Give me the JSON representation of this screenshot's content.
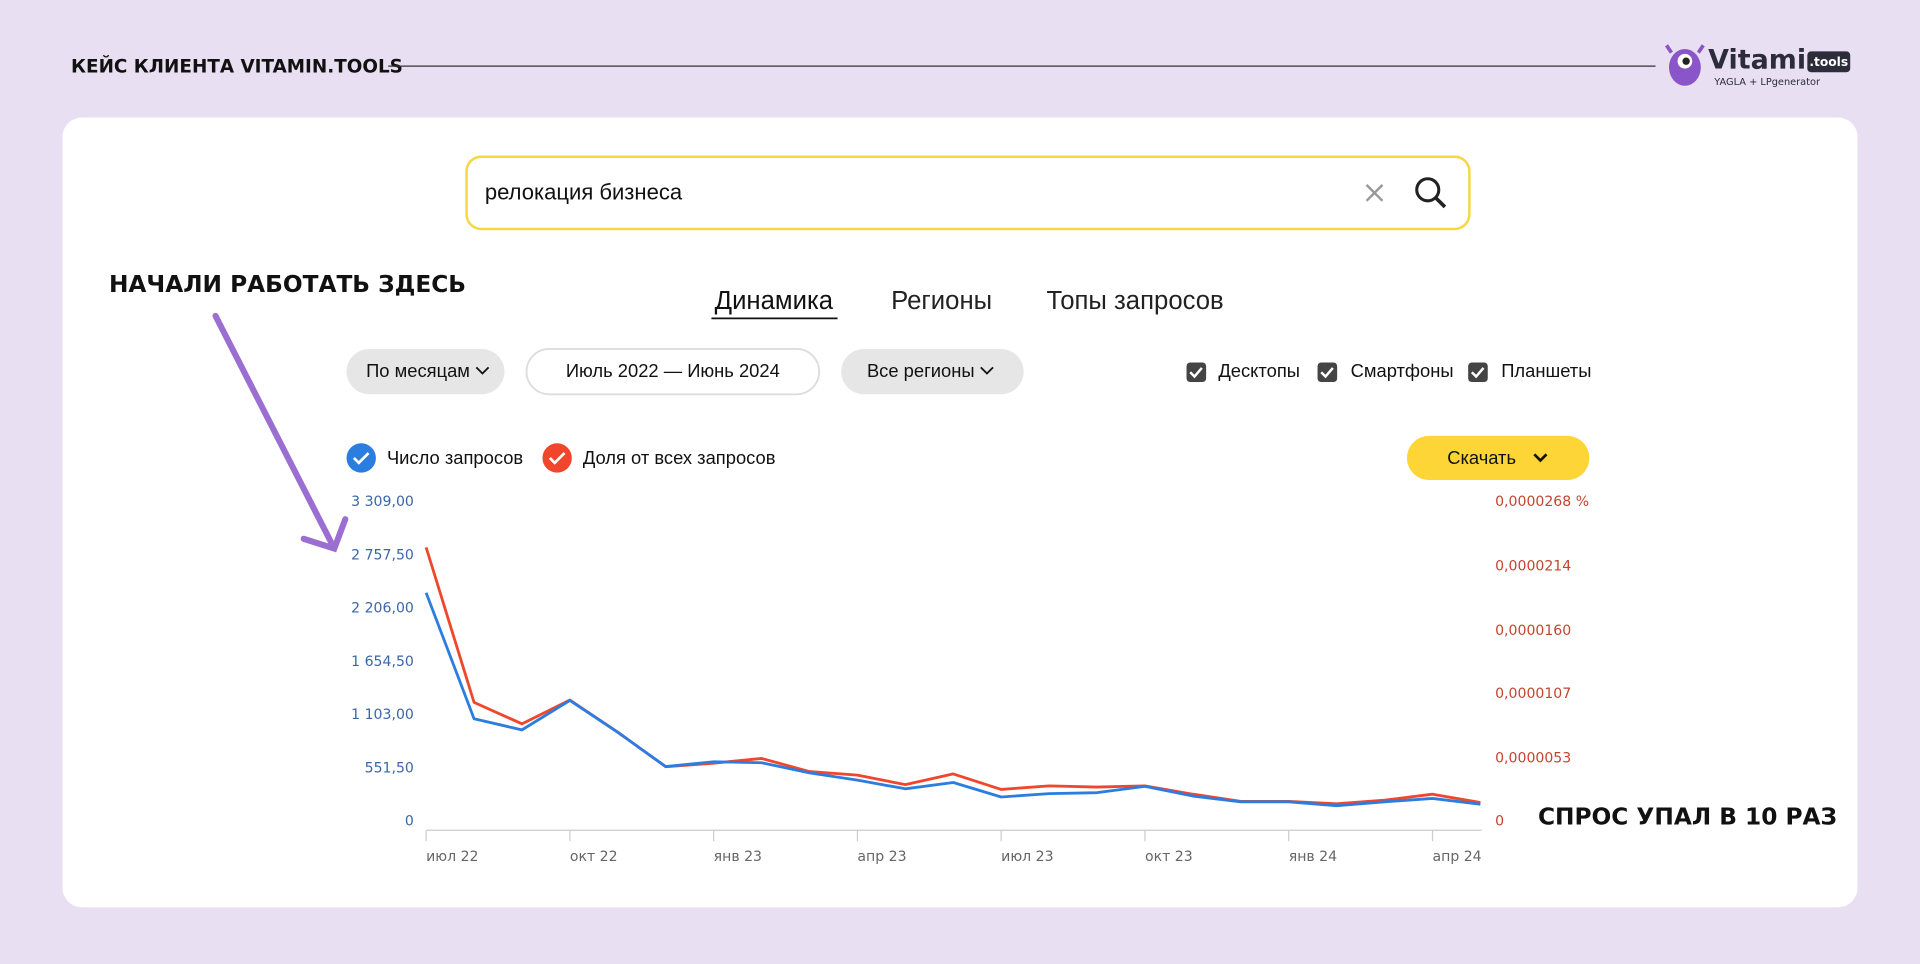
{
  "header": {
    "title": "КЕЙС КЛИЕНТА VITAMIN.TOOLS",
    "logo": {
      "name": "Vitamin",
      "badge": ".tools",
      "tagline": "YAGLA + LPgenerator"
    }
  },
  "search": {
    "query": "релокация бизнеса"
  },
  "tabs": [
    "Динамика",
    "Регионы",
    "Топы запросов"
  ],
  "filters": {
    "period_type": "По месяцам",
    "date_range": "Июль 2022 — Июнь 2024",
    "region": "Все регионы"
  },
  "devices": [
    "Десктопы",
    "Смартфоны",
    "Планшеты"
  ],
  "download": "Скачать",
  "annotations": [
    "НАЧАЛИ РАБОТАТЬ ЗДЕСЬ",
    "СПРОС УПАЛ В 10 РАЗ"
  ],
  "chart_data": {
    "type": "line",
    "categories": [
      "июл 22",
      null,
      null,
      "окт 22",
      null,
      null,
      "янв 23",
      null,
      null,
      "апр 23",
      null,
      null,
      "июл 23",
      null,
      null,
      "окт 23",
      null,
      null,
      "янв 24",
      null,
      null,
      "апр 24",
      null
    ],
    "series": [
      {
        "name": "Число запросов",
        "color": "#2b7de0",
        "values": [
          2370,
          1065,
          950,
          1255,
          925,
          570,
          620,
          610,
          505,
          430,
          340,
          405,
          255,
          290,
          300,
          365,
          265,
          205,
          205,
          165,
          205,
          240,
          180
        ]
      },
      {
        "name": "Доля от всех запросов",
        "color": "#f0462c",
        "axis": "y2",
        "values": [
          2.3e-05,
          1e-05,
          8.2e-06,
          1.02e-05,
          7.5e-06,
          4.6e-06,
          4.9e-06,
          5.3e-06,
          4.2e-06,
          3.9e-06,
          3.1e-06,
          4e-06,
          2.7e-06,
          3e-06,
          2.9e-06,
          3e-06,
          2.3e-06,
          1.7e-06,
          1.7e-06,
          1.5e-06,
          1.8e-06,
          2.3e-06,
          1.6e-06
        ]
      }
    ],
    "ylim": [
      0,
      3309
    ],
    "yticks": [
      0,
      {
        "value": 551.5,
        "label": "551,50"
      },
      {
        "value": 1103,
        "label": "1 103,00"
      },
      {
        "value": 1654.5,
        "label": "1 654,50"
      },
      {
        "value": 2206,
        "label": "2 206,00"
      },
      {
        "value": 2757.5,
        "label": "2 757,50"
      },
      {
        "value": 3309,
        "label": "3 309,00"
      }
    ],
    "y2lim": [
      0,
      2.68e-05
    ],
    "y2ticks": [
      0,
      {
        "value": 5.3e-06,
        "label": "0,0000053"
      },
      {
        "value": 1.07e-05,
        "label": "0,0000107"
      },
      {
        "value": 1.6e-05,
        "label": "0,0000160"
      },
      {
        "value": 2.14e-05,
        "label": "0,0000214"
      },
      {
        "value": 2.68e-05,
        "label": "0,0000268 %"
      }
    ],
    "grid": false
  }
}
